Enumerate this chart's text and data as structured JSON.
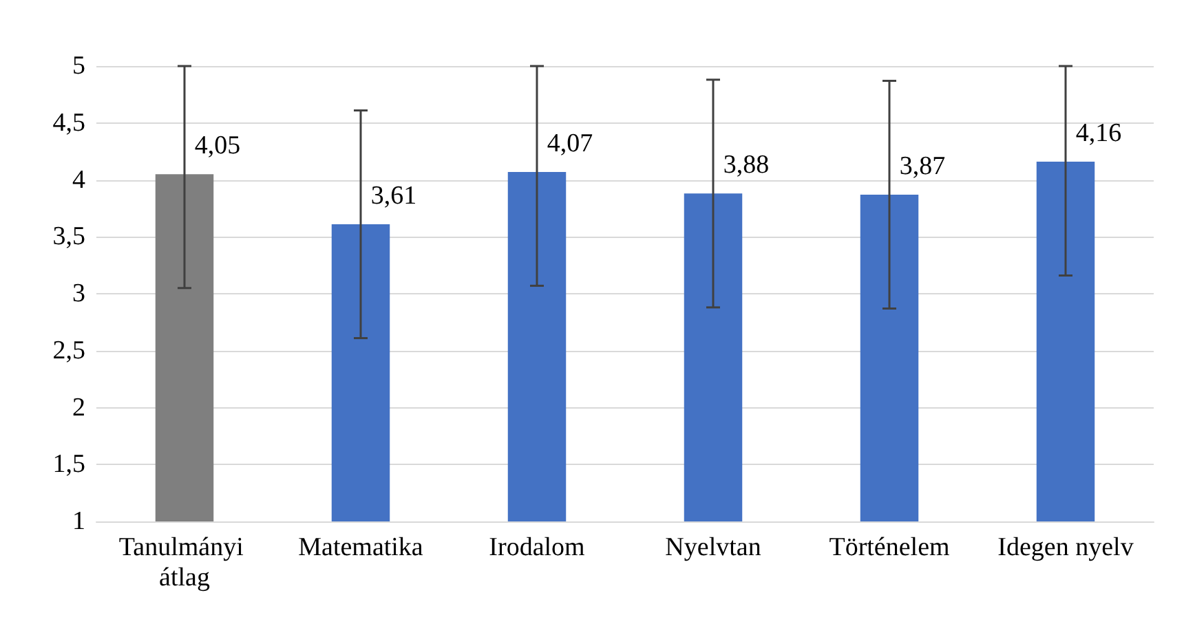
{
  "chart_data": {
    "type": "bar",
    "categories": [
      "Tanulmányi átlag",
      "Matematika",
      "Irodalom",
      "Nyelvtan",
      "Történelem",
      "Idegen nyelv"
    ],
    "values": [
      4.05,
      3.61,
      4.07,
      3.88,
      3.87,
      4.16
    ],
    "colors": [
      "#7f7f7f",
      "#4472c4",
      "#4472c4",
      "#4472c4",
      "#4472c4",
      "#4472c4"
    ],
    "value_labels": [
      "4,05",
      "3,61",
      "4,07",
      "3,88",
      "3,87",
      "4,16"
    ],
    "errors": [
      [
        3.05,
        5
      ],
      [
        2.61,
        4.61
      ],
      [
        3.07,
        5
      ],
      [
        2.88,
        4.88
      ],
      [
        2.87,
        4.87
      ],
      [
        3.16,
        5
      ]
    ],
    "ylim": [
      1,
      5
    ],
    "yticks": [
      1,
      {
        "value": 1.5,
        "label": "1,5"
      },
      2,
      {
        "value": 2.5,
        "label": "2,5"
      },
      3,
      {
        "value": 3.5,
        "label": "3,5"
      },
      4,
      {
        "value": 4.5,
        "label": "4,5"
      },
      5
    ],
    "grid": "y"
  }
}
